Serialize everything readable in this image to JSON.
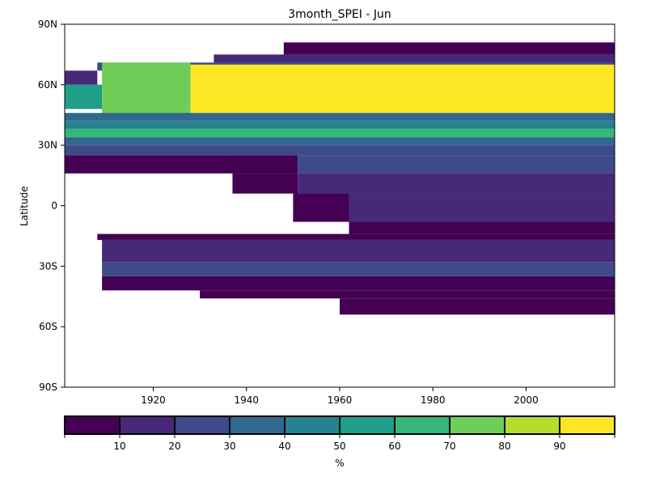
{
  "chart_data": {
    "type": "heatmap",
    "title": "3month_SPEI - Jun",
    "ylabel": "Latitude",
    "xlabel": "",
    "xlim": [
      1901,
      2019
    ],
    "ylim": [
      -90,
      90
    ],
    "x_ticks": [
      {
        "value": 1920,
        "label": "1920"
      },
      {
        "value": 1940,
        "label": "1940"
      },
      {
        "value": 1960,
        "label": "1960"
      },
      {
        "value": 1980,
        "label": "1980"
      },
      {
        "value": 2000,
        "label": "2000"
      }
    ],
    "y_ticks": [
      {
        "value": 90,
        "label": "90N"
      },
      {
        "value": 60,
        "label": "60N"
      },
      {
        "value": 30,
        "label": "30N"
      },
      {
        "value": 0,
        "label": "0"
      },
      {
        "value": -30,
        "label": "30S"
      },
      {
        "value": -60,
        "label": "60S"
      },
      {
        "value": -90,
        "label": "90S"
      }
    ],
    "colorbar": {
      "label": "%",
      "boundaries": [
        0,
        10,
        20,
        30,
        40,
        50,
        60,
        70,
        80,
        90,
        100
      ],
      "tick_labels": [
        "10",
        "20",
        "30",
        "40",
        "50",
        "60",
        "70",
        "80",
        "90"
      ],
      "colors": [
        "#440154",
        "#482878",
        "#3e4a89",
        "#31688e",
        "#26828e",
        "#1f9e89",
        "#35b779",
        "#6ece58",
        "#b5de2b",
        "#fde725"
      ]
    },
    "regions": [
      {
        "lat": [
          75,
          81
        ],
        "years": [
          1948,
          2019
        ],
        "value": 5
      },
      {
        "lat": [
          71,
          75
        ],
        "years": [
          1933,
          2019
        ],
        "value": 15
      },
      {
        "lat": [
          67,
          71
        ],
        "years": [
          1908,
          2019
        ],
        "value": 25
      },
      {
        "lat": [
          44,
          71
        ],
        "years": [
          1909,
          1928
        ],
        "value": 75
      },
      {
        "lat": [
          46,
          70
        ],
        "years": [
          1928,
          2019
        ],
        "value": 95
      },
      {
        "lat": [
          60,
          67
        ],
        "years": [
          1901,
          1908
        ],
        "value": 15
      },
      {
        "lat": [
          48,
          60
        ],
        "years": [
          1901,
          1909
        ],
        "value": 55
      },
      {
        "lat": [
          42,
          46
        ],
        "years": [
          1901,
          2019
        ],
        "value": 35
      },
      {
        "lat": [
          38,
          42
        ],
        "years": [
          1901,
          2019
        ],
        "value": 45
      },
      {
        "lat": [
          34,
          38
        ],
        "years": [
          1901,
          2019
        ],
        "value": 60
      },
      {
        "lat": [
          30,
          34
        ],
        "years": [
          1901,
          2019
        ],
        "value": 30
      },
      {
        "lat": [
          25,
          30
        ],
        "years": [
          1901,
          2019
        ],
        "value": 22
      },
      {
        "lat": [
          16,
          25
        ],
        "years": [
          1901,
          1951
        ],
        "value": 5
      },
      {
        "lat": [
          16,
          25
        ],
        "years": [
          1951,
          2019
        ],
        "value": 25
      },
      {
        "lat": [
          6,
          16
        ],
        "years": [
          1937,
          1951
        ],
        "value": 5
      },
      {
        "lat": [
          6,
          16
        ],
        "years": [
          1951,
          2019
        ],
        "value": 15
      },
      {
        "lat": [
          -8,
          6
        ],
        "years": [
          1950,
          1962
        ],
        "value": 5
      },
      {
        "lat": [
          -8,
          6
        ],
        "years": [
          1962,
          2019
        ],
        "value": 15
      },
      {
        "lat": [
          -14,
          -8
        ],
        "years": [
          1962,
          2019
        ],
        "value": 5
      },
      {
        "lat": [
          -17,
          -14
        ],
        "years": [
          1908,
          2019
        ],
        "value": 5
      },
      {
        "lat": [
          -28,
          -17
        ],
        "years": [
          1909,
          2019
        ],
        "value": 15
      },
      {
        "lat": [
          -35,
          -28
        ],
        "years": [
          1909,
          2019
        ],
        "value": 25
      },
      {
        "lat": [
          -42,
          -35
        ],
        "years": [
          1909,
          2019
        ],
        "value": 5
      },
      {
        "lat": [
          -46,
          -42
        ],
        "years": [
          1930,
          2019
        ],
        "value": 5
      },
      {
        "lat": [
          -54,
          -46
        ],
        "years": [
          1960,
          2019
        ],
        "value": 5
      }
    ]
  }
}
